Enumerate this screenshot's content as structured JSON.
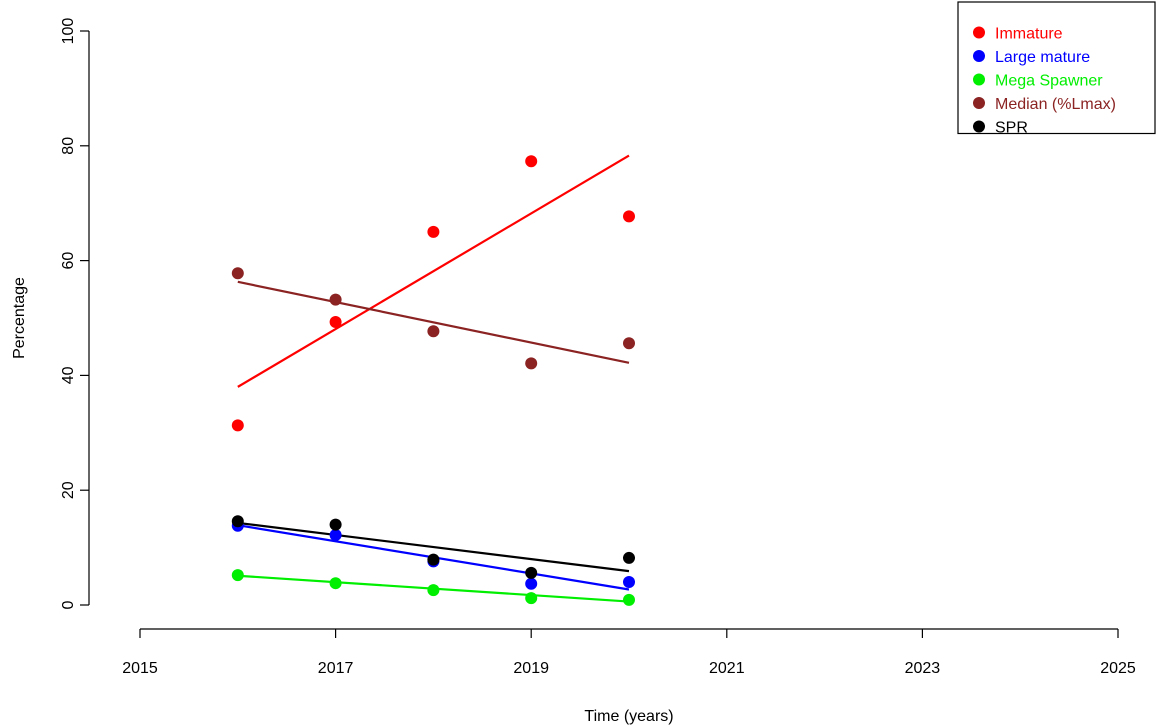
{
  "chart_data": {
    "type": "scatter",
    "title": "",
    "xlabel": "Time (years)",
    "ylabel": "Percentage",
    "xlim": [
      2015,
      2025
    ],
    "ylim": [
      0,
      100
    ],
    "x_ticks": [
      2015,
      2017,
      2019,
      2021,
      2023,
      2025
    ],
    "y_ticks": [
      0,
      20,
      40,
      60,
      80,
      100
    ],
    "x_tick_labels": [
      "2015",
      "2017",
      "2019",
      "2021",
      "2023",
      "2025"
    ],
    "y_tick_labels": [
      "0",
      "20",
      "40",
      "60",
      "80",
      "100"
    ],
    "grid": false,
    "legend_position": "top-right",
    "x": [
      2016,
      2017,
      2018,
      2019,
      2020
    ],
    "series": [
      {
        "name": "Immature",
        "color": "#ff0000",
        "values": [
          31.3,
          49.3,
          65.0,
          77.3,
          67.7
        ],
        "trend": [
          [
            2016,
            38.0
          ],
          [
            2020,
            78.3
          ]
        ]
      },
      {
        "name": "Large mature",
        "color": "#0000ff",
        "values": [
          13.8,
          12.2,
          7.6,
          3.7,
          4.0
        ],
        "trend": [
          [
            2016,
            13.9
          ],
          [
            2020,
            2.7
          ]
        ]
      },
      {
        "name": "Mega Spawner",
        "color": "#00ee00",
        "values": [
          5.2,
          3.8,
          2.6,
          1.2,
          0.9
        ],
        "trend": [
          [
            2016,
            5.1
          ],
          [
            2020,
            0.6
          ]
        ]
      },
      {
        "name": "Median (%Lmax)",
        "color": "#8b2323",
        "values": [
          57.8,
          53.2,
          47.7,
          42.1,
          45.6
        ],
        "trend": [
          [
            2016,
            56.3
          ],
          [
            2020,
            42.2
          ]
        ]
      },
      {
        "name": "SPR",
        "color": "#000000",
        "values": [
          14.6,
          14.0,
          7.9,
          5.6,
          8.2
        ],
        "trend": [
          [
            2016,
            14.3
          ],
          [
            2020,
            5.9
          ]
        ]
      }
    ]
  }
}
